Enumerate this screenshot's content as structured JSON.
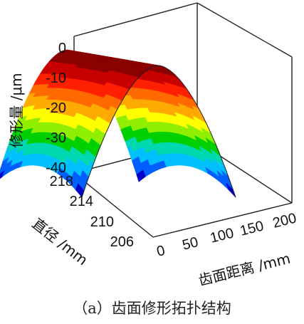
{
  "chart_data": {
    "type": "surface",
    "zlabel": "修形量 /μm",
    "ylabel": "直径 /mm",
    "xlabel": "齿面距离 /mm",
    "z_ticks": [
      "0",
      "-10",
      "-20",
      "-30",
      "-40"
    ],
    "y_ticks": [
      "218",
      "214",
      "210",
      "206"
    ],
    "x_ticks": [
      "0",
      "50",
      "100",
      "150",
      "200"
    ],
    "zlim": [
      -45,
      0
    ],
    "ylim": [
      206,
      218
    ],
    "xlim": [
      0,
      200
    ],
    "contour_colors": [
      "#8b0000",
      "#c80000",
      "#ff2000",
      "#ff6a00",
      "#ffaa00",
      "#ffff00",
      "#90ee00",
      "#00d000",
      "#00d8b0",
      "#00c0ff",
      "#0060ff",
      "#0000c8"
    ],
    "grid": false
  },
  "caption": "（a）齿面修形拓扑结构"
}
